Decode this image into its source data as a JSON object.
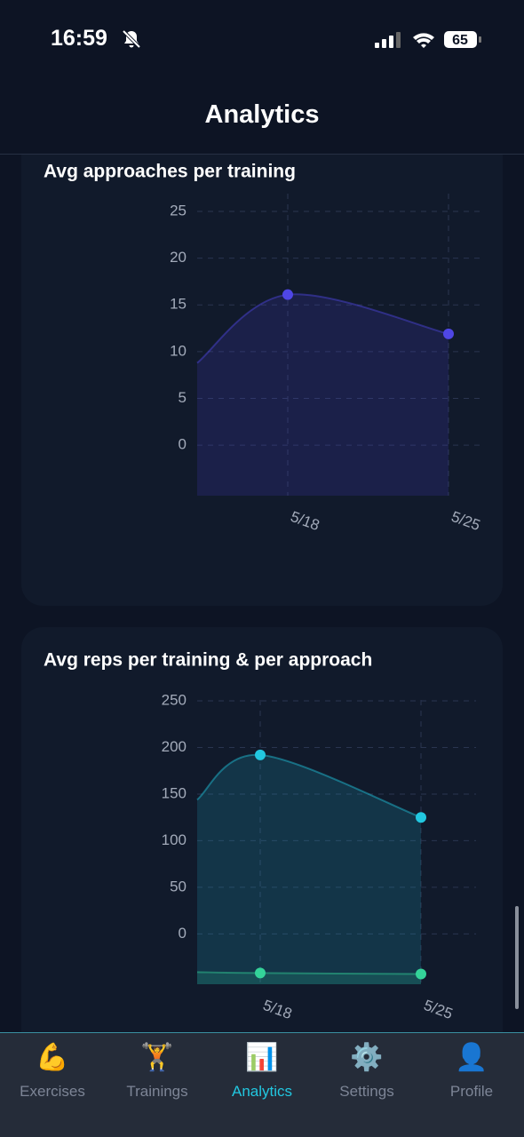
{
  "status_bar": {
    "time": "16:59",
    "battery": "65"
  },
  "header": {
    "title": "Analytics"
  },
  "chart_data": [
    {
      "type": "line",
      "title": "Avg approaches per training",
      "categories": [
        null,
        "5/18",
        "5/25"
      ],
      "series": [
        {
          "color": "#4f46e5",
          "values": [
            8.8,
            16.1,
            11.9
          ]
        }
      ],
      "ylim": [
        -5.4,
        26.9
      ],
      "yticks": [
        0,
        5,
        10,
        15,
        20,
        25
      ],
      "grid": true
    },
    {
      "type": "line",
      "title": "Avg reps per training & per approach",
      "categories": [
        null,
        "5/18",
        "5/25"
      ],
      "series": [
        {
          "color": "#22c7e0",
          "values": [
            144,
            192,
            125
          ]
        },
        {
          "color": "#34d399",
          "values": [
            -41,
            -42,
            -43
          ]
        }
      ],
      "ylim": [
        -54,
        251
      ],
      "yticks": [
        0,
        50,
        100,
        150,
        200,
        250
      ],
      "grid": true
    }
  ],
  "tab_bar": {
    "active": 2,
    "tabs": [
      {
        "icon": "💪",
        "label": "Exercises"
      },
      {
        "icon": "🏋️",
        "label": "Trainings"
      },
      {
        "icon": "📊",
        "label": "Analytics"
      },
      {
        "icon": "⚙️",
        "label": "Settings"
      },
      {
        "icon": "👤",
        "label": "Profile"
      }
    ]
  }
}
